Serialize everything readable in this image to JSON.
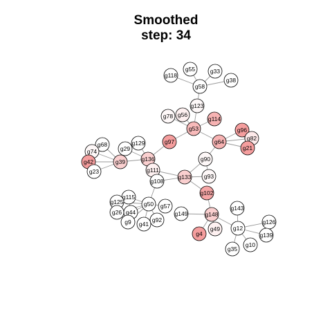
{
  "title": "Smoothed",
  "subtitle": "step: 34",
  "network": {
    "nodes": [
      {
        "id": "118",
        "label": "g118",
        "level": 0
      },
      {
        "id": "55",
        "label": "g55",
        "level": 0
      },
      {
        "id": "33",
        "label": "g33",
        "level": 0
      },
      {
        "id": "38",
        "label": "g38",
        "level": 0
      },
      {
        "id": "58",
        "label": "g58",
        "level": 0
      },
      {
        "id": "123",
        "label": "g123",
        "level": 0.05
      },
      {
        "id": "78",
        "label": "g78",
        "level": 0.05
      },
      {
        "id": "56",
        "label": "g56",
        "level": 0.1
      },
      {
        "id": "114",
        "label": "g114",
        "level": 0.55
      },
      {
        "id": "53",
        "label": "g53",
        "level": 0.5
      },
      {
        "id": "96",
        "label": "g96",
        "level": 0.7
      },
      {
        "id": "82",
        "label": "g82",
        "level": 0.15
      },
      {
        "id": "64",
        "label": "g64",
        "level": 0.55
      },
      {
        "id": "21",
        "label": "g21",
        "level": 0.7
      },
      {
        "id": "97",
        "label": "g97",
        "level": 0.7
      },
      {
        "id": "68",
        "label": "g68",
        "level": 0
      },
      {
        "id": "74",
        "label": "g74",
        "level": 0.05
      },
      {
        "id": "29",
        "label": "g29",
        "level": 0
      },
      {
        "id": "129",
        "label": "g129",
        "level": 0
      },
      {
        "id": "42",
        "label": "g42",
        "level": 0.7
      },
      {
        "id": "39",
        "label": "g39",
        "level": 0.35
      },
      {
        "id": "136",
        "label": "g136",
        "level": 0.35
      },
      {
        "id": "23",
        "label": "g23",
        "level": 0
      },
      {
        "id": "90",
        "label": "g90",
        "level": 0.05
      },
      {
        "id": "111",
        "label": "g111",
        "level": 0.1
      },
      {
        "id": "133",
        "label": "g133",
        "level": 0.35
      },
      {
        "id": "93",
        "label": "g93",
        "level": 0.05
      },
      {
        "id": "108",
        "label": "g108",
        "level": 0
      },
      {
        "id": "102",
        "label": "g102",
        "level": 0.65
      },
      {
        "id": "115",
        "label": "g115",
        "level": 0
      },
      {
        "id": "125",
        "label": "g125",
        "level": 0
      },
      {
        "id": "50",
        "label": "g50",
        "level": 0
      },
      {
        "id": "57",
        "label": "g57",
        "level": 0
      },
      {
        "id": "26",
        "label": "g26",
        "level": 0
      },
      {
        "id": "44",
        "label": "g44",
        "level": 0
      },
      {
        "id": "149",
        "label": "g149",
        "level": 0
      },
      {
        "id": "148",
        "label": "g148",
        "level": 0.35
      },
      {
        "id": "143",
        "label": "g143",
        "level": 0
      },
      {
        "id": "92",
        "label": "g92",
        "level": 0
      },
      {
        "id": "9",
        "label": "g9",
        "level": 0
      },
      {
        "id": "41",
        "label": "g41",
        "level": 0
      },
      {
        "id": "126",
        "label": "g126",
        "level": 0
      },
      {
        "id": "49",
        "label": "g49",
        "level": 0.1
      },
      {
        "id": "12",
        "label": "g12",
        "level": 0
      },
      {
        "id": "4",
        "label": "g4",
        "level": 0.7
      },
      {
        "id": "139",
        "label": "g139",
        "level": 0
      },
      {
        "id": "35",
        "label": "g35",
        "level": 0
      },
      {
        "id": "10",
        "label": "g10",
        "level": 0
      }
    ],
    "edges": [
      [
        "118",
        "58"
      ],
      [
        "55",
        "58"
      ],
      [
        "33",
        "58"
      ],
      [
        "38",
        "58"
      ],
      [
        "58",
        "123"
      ],
      [
        "123",
        "53"
      ],
      [
        "78",
        "53"
      ],
      [
        "56",
        "53"
      ],
      [
        "114",
        "53"
      ],
      [
        "53",
        "64"
      ],
      [
        "53",
        "97"
      ],
      [
        "64",
        "96"
      ],
      [
        "64",
        "82"
      ],
      [
        "64",
        "21"
      ],
      [
        "96",
        "82"
      ],
      [
        "82",
        "21"
      ],
      [
        "96",
        "21"
      ],
      [
        "64",
        "90"
      ],
      [
        "90",
        "133"
      ],
      [
        "90",
        "93"
      ],
      [
        "133",
        "93"
      ],
      [
        "133",
        "102"
      ],
      [
        "133",
        "111"
      ],
      [
        "133",
        "108"
      ],
      [
        "97",
        "136"
      ],
      [
        "136",
        "129"
      ],
      [
        "136",
        "29"
      ],
      [
        "136",
        "39"
      ],
      [
        "136",
        "111"
      ],
      [
        "111",
        "108"
      ],
      [
        "39",
        "68"
      ],
      [
        "39",
        "74"
      ],
      [
        "39",
        "42"
      ],
      [
        "39",
        "23"
      ],
      [
        "39",
        "29"
      ],
      [
        "42",
        "74"
      ],
      [
        "42",
        "23"
      ],
      [
        "102",
        "148"
      ],
      [
        "149",
        "148"
      ],
      [
        "148",
        "49"
      ],
      [
        "148",
        "4"
      ],
      [
        "148",
        "12"
      ],
      [
        "143",
        "12"
      ],
      [
        "12",
        "126"
      ],
      [
        "12",
        "139"
      ],
      [
        "12",
        "35"
      ],
      [
        "12",
        "10"
      ],
      [
        "126",
        "139"
      ],
      [
        "50",
        "115"
      ],
      [
        "50",
        "125"
      ],
      [
        "50",
        "26"
      ],
      [
        "50",
        "44"
      ],
      [
        "50",
        "9"
      ],
      [
        "50",
        "41"
      ],
      [
        "50",
        "92"
      ],
      [
        "50",
        "57"
      ],
      [
        "50",
        "108"
      ],
      [
        "115",
        "44"
      ],
      [
        "125",
        "26"
      ]
    ]
  },
  "colors": {
    "node_base": "#ffffff",
    "node_hot": "#f07575",
    "edge": "#9a9a9a",
    "stroke": "#000000"
  }
}
